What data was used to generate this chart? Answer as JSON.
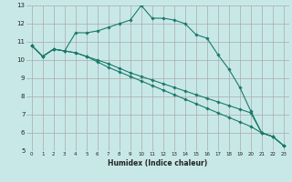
{
  "background_color": "#c8e8e8",
  "grid_color": "#aaaaaa",
  "line_color": "#1a7a6a",
  "xlabel": "Humidex (Indice chaleur)",
  "xlim": [
    -0.5,
    23.5
  ],
  "ylim": [
    5,
    13
  ],
  "xticks": [
    0,
    1,
    2,
    3,
    4,
    5,
    6,
    7,
    8,
    9,
    10,
    11,
    12,
    13,
    14,
    15,
    16,
    17,
    18,
    19,
    20,
    21,
    22,
    23
  ],
  "yticks": [
    5,
    6,
    7,
    8,
    9,
    10,
    11,
    12,
    13
  ],
  "line1_x": [
    0,
    1,
    2,
    3,
    4,
    5,
    6,
    7,
    8,
    9,
    10,
    11,
    12,
    13,
    14,
    15,
    16,
    17,
    18,
    19,
    20,
    21,
    22,
    23
  ],
  "line1_y": [
    10.8,
    10.2,
    10.6,
    10.5,
    11.5,
    11.5,
    11.6,
    11.8,
    12.0,
    12.2,
    13.0,
    12.3,
    12.3,
    12.2,
    12.0,
    11.4,
    11.2,
    10.3,
    9.5,
    8.5,
    7.2,
    6.0,
    5.8,
    5.3
  ],
  "line2_x": [
    0,
    1,
    2,
    3,
    4,
    5,
    6,
    7,
    8,
    9,
    10,
    11,
    12,
    13,
    14,
    15,
    16,
    17,
    18,
    19,
    20,
    21,
    22,
    23
  ],
  "line2_y": [
    10.8,
    10.2,
    10.6,
    10.5,
    10.4,
    10.2,
    10.0,
    9.8,
    9.55,
    9.3,
    9.1,
    8.9,
    8.7,
    8.5,
    8.3,
    8.1,
    7.9,
    7.7,
    7.5,
    7.3,
    7.1,
    6.0,
    5.8,
    5.3
  ],
  "line3_x": [
    0,
    1,
    2,
    3,
    4,
    5,
    6,
    7,
    8,
    9,
    10,
    11,
    12,
    13,
    14,
    15,
    16,
    17,
    18,
    19,
    20,
    21,
    22,
    23
  ],
  "line3_y": [
    10.8,
    10.2,
    10.6,
    10.5,
    10.4,
    10.2,
    9.9,
    9.6,
    9.35,
    9.1,
    8.85,
    8.6,
    8.35,
    8.1,
    7.85,
    7.6,
    7.35,
    7.1,
    6.85,
    6.6,
    6.35,
    6.0,
    5.8,
    5.3
  ]
}
